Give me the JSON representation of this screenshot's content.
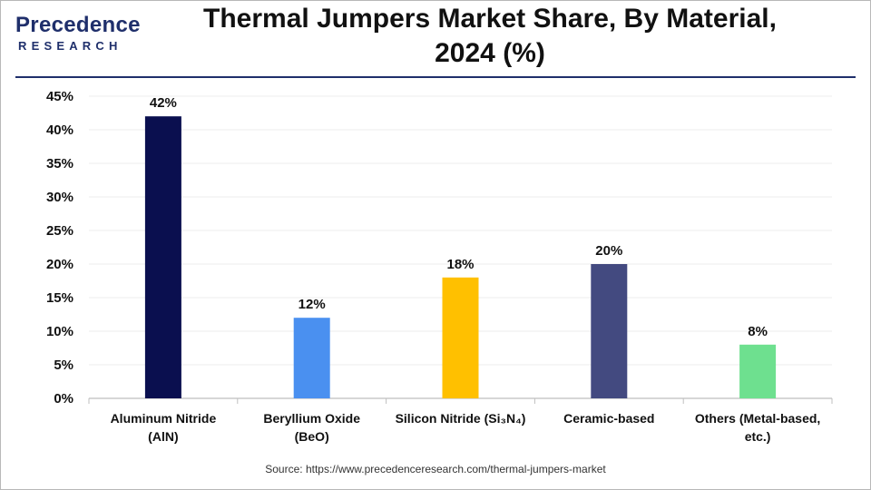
{
  "header": {
    "logo_top": "Precedence",
    "logo_sub": "RESEARCH",
    "title_line1": "Thermal Jumpers Market Share, By Material,",
    "title_line2": "2024 (%)"
  },
  "footer": {
    "source": "Source: https://www.precedenceresearch.com/thermal-jumpers-market"
  },
  "colors": {
    "brand": "#1f2f6b",
    "axis": "#bfbfbf",
    "grid": "#ececec"
  },
  "chart_data": {
    "type": "bar",
    "title": "Thermal Jumpers Market Share, By Material, 2024 (%)",
    "xlabel": "",
    "ylabel": "",
    "ylim": [
      0,
      45
    ],
    "y_ticks": [
      "0%",
      "5%",
      "10%",
      "15%",
      "20%",
      "25%",
      "30%",
      "35%",
      "40%",
      "45%"
    ],
    "grid": true,
    "categories": [
      [
        "Aluminum Nitride",
        "(AlN)"
      ],
      [
        "Beryllium Oxide",
        "(BeO)"
      ],
      [
        "Silicon Nitride (Si₃N₄)"
      ],
      [
        "Ceramic-based"
      ],
      [
        "Others (Metal-based,",
        "etc.)"
      ]
    ],
    "values": [
      42,
      12,
      18,
      20,
      8
    ],
    "value_labels": [
      "42%",
      "12%",
      "18%",
      "20%",
      "8%"
    ],
    "bar_colors": [
      "#0a0f4f",
      "#4a90f0",
      "#ffc000",
      "#434a80",
      "#6ee08f"
    ]
  }
}
